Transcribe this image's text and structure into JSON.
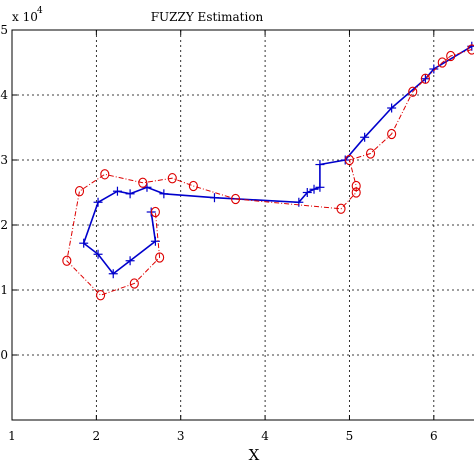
{
  "chart_data": {
    "type": "line",
    "title": "FUZZY Estimation",
    "xlabel": "X",
    "ylabel": "",
    "exponent_label": "x 10",
    "exponent_power": "4",
    "xlim": [
      1,
      6.5
    ],
    "ylim": [
      -1,
      5
    ],
    "xticks": [
      "1",
      "2",
      "3",
      "4",
      "5",
      "6"
    ],
    "yticks": [
      "0",
      "1",
      "2",
      "3",
      "4",
      "5"
    ],
    "grid": true,
    "series": [
      {
        "color": "#0000cc",
        "marker": "plus",
        "line": "solid",
        "x": [
          6.45,
          6.0,
          5.9,
          5.5,
          5.18,
          4.95,
          4.65,
          4.65,
          4.58,
          4.5,
          4.4,
          3.4,
          2.8,
          2.6,
          2.4,
          2.25,
          2.02,
          1.85,
          2.02,
          2.2,
          2.4,
          2.7,
          2.65
        ],
        "y": [
          4.75,
          4.4,
          4.25,
          3.8,
          3.35,
          3.0,
          2.93,
          2.58,
          2.55,
          2.5,
          2.35,
          2.42,
          2.48,
          2.58,
          2.48,
          2.52,
          2.35,
          1.72,
          1.55,
          1.25,
          1.45,
          1.75,
          2.2
        ]
      },
      {
        "color": "#dd0000",
        "marker": "circle",
        "line": "dashdot",
        "x": [
          6.45,
          6.2,
          6.1,
          5.9,
          5.75,
          5.5,
          5.25,
          5.0,
          5.08,
          5.08,
          4.9,
          3.65,
          3.15,
          2.9,
          2.55,
          2.1,
          1.8,
          1.65,
          2.05,
          2.45,
          2.75,
          2.7
        ],
        "y": [
          4.7,
          4.6,
          4.5,
          4.25,
          4.05,
          3.4,
          3.1,
          3.0,
          2.6,
          2.5,
          2.25,
          2.4,
          2.6,
          2.72,
          2.65,
          2.78,
          2.52,
          1.45,
          0.92,
          1.1,
          1.5,
          2.2
        ]
      }
    ]
  }
}
